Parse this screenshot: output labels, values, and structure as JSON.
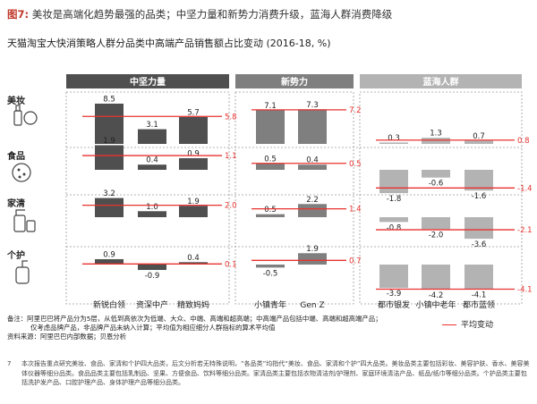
{
  "figure": {
    "number": "图7:",
    "title": "美妆是高端化趋势最强的品类；中坚力量和新势力消费升级，蓝海人群消费降级"
  },
  "chart_data": {
    "type": "bar",
    "title": "天猫淘宝大快消策略人群分品类中高端产品销售额占比变动 (2016-18, %)",
    "groups": [
      {
        "name": "中坚力量",
        "color": "#4f4f4f",
        "categories": [
          "新锐白领",
          "资深中产",
          "精致妈妈"
        ]
      },
      {
        "name": "新势力",
        "color": "#7f7f7f",
        "categories": [
          "小镇青年",
          "Gen Z"
        ]
      },
      {
        "name": "蓝海人群",
        "color": "#b3b3b3",
        "categories": [
          "都市银发",
          "小镇中老年",
          "都市蓝领"
        ]
      }
    ],
    "categories": [
      "新锐白领",
      "资深中产",
      "精致妈妈",
      "小镇青年",
      "Gen Z",
      "都市银发",
      "小镇中老年",
      "都市蓝领"
    ],
    "rows": [
      {
        "name": "美妆",
        "values": [
          8.5,
          3.1,
          5.7,
          7.1,
          7.3,
          0.3,
          1.3,
          0.7
        ],
        "averages": [
          {
            "group": "中坚力量",
            "value": 5.8
          },
          {
            "group": "新势力",
            "value": 7.2
          },
          {
            "group": "蓝海人群",
            "value": 0.8
          }
        ]
      },
      {
        "name": "食品",
        "values": [
          1.9,
          0.4,
          0.9,
          0.5,
          0.4,
          -1.8,
          -0.6,
          -1.6
        ],
        "averages": [
          {
            "group": "中坚力量",
            "value": 1.1
          },
          {
            "group": "新势力",
            "value": 0.5
          },
          {
            "group": "蓝海人群",
            "value": -1.4
          }
        ]
      },
      {
        "name": "家清",
        "values": [
          3.2,
          1.0,
          1.9,
          0.5,
          2.2,
          -0.8,
          -2.0,
          -3.6
        ],
        "averages": [
          {
            "group": "中坚力量",
            "value": 2.0
          },
          {
            "group": "新势力",
            "value": 1.4
          },
          {
            "group": "蓝海人群",
            "value": -2.1
          }
        ]
      },
      {
        "name": "个护",
        "values": [
          0.9,
          -0.9,
          0.4,
          -0.5,
          1.9,
          -3.9,
          -4.2,
          -4.1
        ],
        "averages": [
          {
            "group": "中坚力量",
            "value": 0.1
          },
          {
            "group": "新势力",
            "value": 0.7
          },
          {
            "group": "蓝海人群",
            "value": -4.1
          }
        ]
      }
    ],
    "legend": {
      "label": "平均变动",
      "color": "#e8322e",
      "placement": "bottom-right"
    }
  },
  "notes": {
    "line1": "备注：阿里巴巴将产品分为5层，从低到高依次为低端、大众、中端、高端和超高端；中高端产品包括中端、高端和超高端产品；",
    "line2": "仅考虑品牌产品，非品牌产品未纳入计算；平均值为相应细分人群指标的算术平均值",
    "source": "资料来源：阿里巴巴内部数据；贝恩分析"
  },
  "footnote": {
    "page": "7",
    "text": "本次报告重点研究美妆、食品、家清和个护四大品类，后文分析若无特殊说明，“各品类”均指代“美妆、食品、家清和个护”四大品类。美妆品类主要包括彩妆、美容护肤、香水、美容美体仪器等细分品类。食品品类主要包括乳制品、坚果、方便食品、饮料等细分品类。家清品类主要包括衣物清洁剂/护理剂、家庭环境清洁产品、纸品/纸巾等细分品类。个护品类主要包括洗护发产品、口腔护理产品、身体护理产品等细分品类。"
  }
}
